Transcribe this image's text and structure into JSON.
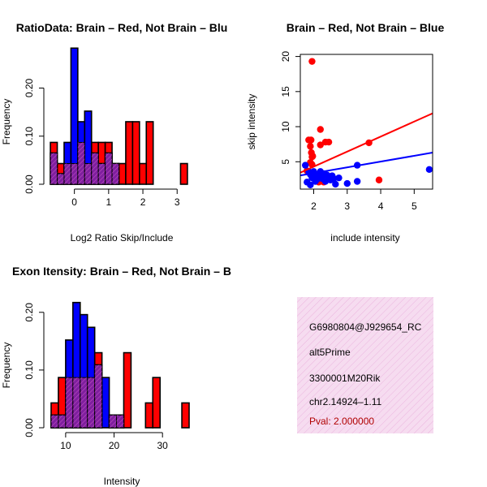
{
  "colors": {
    "brain": "#ff0000",
    "not_brain": "#0000ff",
    "overlap": "#7f1f9f",
    "overlap_hatch": "#c050c0",
    "info_bg": "#f6dcf0",
    "pval_text": "#b00000"
  },
  "chart_data": [
    {
      "id": "ratio-hist",
      "type": "bar",
      "title": "RatioData: Brain – Red, Not Brain – Blu",
      "xlabel": "Log2 Ratio Skip/Include",
      "ylabel": "Frequency",
      "xlim": [
        -0.75,
        3.35
      ],
      "ylim": [
        0,
        0.27
      ],
      "xticks": [
        0,
        1,
        2,
        3
      ],
      "xtick_labels": [
        "0",
        "1",
        "2",
        "3"
      ],
      "yticks": [
        0.0,
        0.1,
        0.2
      ],
      "ytick_labels": [
        "0.00",
        "0.10",
        "0.20"
      ],
      "bin_width": 0.2,
      "series": [
        {
          "name": "Brain",
          "color": "red",
          "bins": [
            [
              -0.7,
              -0.5,
              0.087
            ],
            [
              -0.5,
              -0.3,
              0.043
            ],
            [
              -0.3,
              -0.1,
              0.043
            ],
            [
              -0.1,
              0.1,
              0.043
            ],
            [
              0.1,
              0.3,
              0.087
            ],
            [
              0.3,
              0.5,
              0.043
            ],
            [
              0.5,
              0.7,
              0.087
            ],
            [
              0.7,
              0.9,
              0.087
            ],
            [
              0.9,
              1.1,
              0.087
            ],
            [
              1.1,
              1.3,
              0.043
            ],
            [
              1.3,
              1.5,
              0.043
            ],
            [
              1.5,
              1.7,
              0.13
            ],
            [
              1.7,
              1.9,
              0.13
            ],
            [
              1.9,
              2.1,
              0.043
            ],
            [
              2.1,
              2.3,
              0.13
            ],
            [
              3.1,
              3.3,
              0.043
            ]
          ]
        },
        {
          "name": "Not Brain",
          "color": "blue",
          "bins": [
            [
              -0.7,
              -0.5,
              0.065
            ],
            [
              -0.5,
              -0.3,
              0.022
            ],
            [
              -0.3,
              -0.1,
              0.087
            ],
            [
              -0.1,
              0.1,
              0.283
            ],
            [
              0.1,
              0.3,
              0.13
            ],
            [
              0.3,
              0.5,
              0.152
            ],
            [
              0.5,
              0.7,
              0.065
            ],
            [
              0.7,
              0.9,
              0.043
            ],
            [
              0.9,
              1.1,
              0.065
            ],
            [
              1.1,
              1.3,
              0.043
            ]
          ]
        }
      ]
    },
    {
      "id": "intensity-scatter",
      "type": "scatter",
      "title": "Brain – Red, Not Brain – Blue",
      "xlabel": "include intensity",
      "ylabel": "skip intensity",
      "xlim": [
        1.6,
        5.55
      ],
      "ylim": [
        1.1,
        20.3
      ],
      "xticks": [
        2,
        3,
        4,
        5
      ],
      "xtick_labels": [
        "2",
        "3",
        "4",
        "5"
      ],
      "yticks": [
        5,
        10,
        15,
        20
      ],
      "ytick_labels": [
        "5",
        "10",
        "15",
        "20"
      ],
      "series": [
        {
          "name": "Brain",
          "color": "red",
          "points": [
            [
              1.95,
              19.3
            ],
            [
              1.85,
              8.1
            ],
            [
              1.92,
              8.1
            ],
            [
              1.9,
              7.2
            ],
            [
              1.93,
              6.3
            ],
            [
              1.95,
              5.7
            ],
            [
              1.97,
              5.8
            ],
            [
              2.2,
              9.6
            ],
            [
              2.35,
              7.8
            ],
            [
              2.45,
              7.8
            ],
            [
              2.2,
              7.4
            ],
            [
              3.65,
              7.7
            ],
            [
              1.9,
              4.9
            ],
            [
              1.95,
              4.6
            ],
            [
              2.1,
              3.2
            ],
            [
              2.3,
              2.1
            ],
            [
              3.95,
              2.4
            ],
            [
              1.8,
              3.7
            ],
            [
              2.05,
              2.7
            ],
            [
              2.2,
              3.3
            ],
            [
              2.15,
              2.1
            ],
            [
              2.5,
              2.9
            ]
          ],
          "trend": [
            [
              1.6,
              3.45
            ],
            [
              5.55,
              11.9
            ]
          ]
        },
        {
          "name": "Not Brain",
          "color": "blue",
          "points": [
            [
              1.75,
              4.5
            ],
            [
              1.8,
              2.1
            ],
            [
              1.85,
              3.6
            ],
            [
              1.9,
              3.2
            ],
            [
              1.95,
              2.7
            ],
            [
              2.0,
              3.6
            ],
            [
              2.05,
              2.2
            ],
            [
              2.1,
              2.5
            ],
            [
              2.1,
              3.1
            ],
            [
              2.15,
              2.9
            ],
            [
              2.2,
              3.6
            ],
            [
              2.25,
              2.6
            ],
            [
              2.3,
              3.3
            ],
            [
              2.35,
              2.2
            ],
            [
              2.4,
              3.1
            ],
            [
              2.45,
              2.7
            ],
            [
              2.5,
              2.4
            ],
            [
              2.55,
              3.0
            ],
            [
              2.6,
              2.6
            ],
            [
              2.65,
              1.8
            ],
            [
              2.75,
              2.7
            ],
            [
              3.0,
              1.9
            ],
            [
              3.3,
              2.2
            ],
            [
              3.3,
              4.5
            ],
            [
              5.45,
              3.9
            ],
            [
              1.9,
              1.7
            ]
          ],
          "trend": [
            [
              1.6,
              3.05
            ],
            [
              5.55,
              6.3
            ]
          ]
        }
      ]
    },
    {
      "id": "intensity-hist",
      "type": "bar",
      "title": "Exon Itensity: Brain – Red, Not Brain – B",
      "xlabel": "Intensity",
      "ylabel": "Frequency",
      "xlim": [
        6.5,
        35.5
      ],
      "ylim": [
        0,
        0.225
      ],
      "xticks": [
        10,
        20,
        30
      ],
      "xtick_labels": [
        "10",
        "20",
        "30"
      ],
      "yticks": [
        0.0,
        0.1,
        0.2
      ],
      "ytick_labels": [
        "0.00",
        "0.10",
        "0.20"
      ],
      "bin_width": 1.5,
      "series": [
        {
          "name": "Brain",
          "color": "red",
          "bins": [
            [
              7.0,
              8.5,
              0.043
            ],
            [
              8.5,
              10.0,
              0.087
            ],
            [
              10.0,
              11.5,
              0.087
            ],
            [
              11.5,
              13.0,
              0.087
            ],
            [
              13.0,
              14.5,
              0.087
            ],
            [
              14.5,
              16.0,
              0.087
            ],
            [
              16.0,
              17.5,
              0.13
            ],
            [
              19.0,
              20.5,
              0.022
            ],
            [
              20.5,
              22.0,
              0.022
            ],
            [
              22.0,
              23.5,
              0.13
            ],
            [
              26.5,
              28.0,
              0.043
            ],
            [
              28.0,
              29.5,
              0.087
            ],
            [
              34.0,
              35.5,
              0.043
            ]
          ]
        },
        {
          "name": "Not Brain",
          "color": "blue",
          "bins": [
            [
              7.0,
              8.5,
              0.022
            ],
            [
              8.5,
              10.0,
              0.022
            ],
            [
              10.0,
              11.5,
              0.152
            ],
            [
              11.5,
              13.0,
              0.217
            ],
            [
              13.0,
              14.5,
              0.196
            ],
            [
              14.5,
              16.0,
              0.174
            ],
            [
              16.0,
              17.5,
              0.109
            ],
            [
              17.5,
              19.0,
              0.087
            ],
            [
              19.0,
              20.5,
              0.022
            ],
            [
              20.5,
              22.0,
              0.022
            ]
          ]
        }
      ]
    }
  ],
  "info_box": {
    "lines": [
      "G6980804@J929654_RC",
      "alt5Prime",
      "3300001M20Rik",
      "chr2.14924–1.11"
    ],
    "pval": "Pval: 2.000000"
  }
}
